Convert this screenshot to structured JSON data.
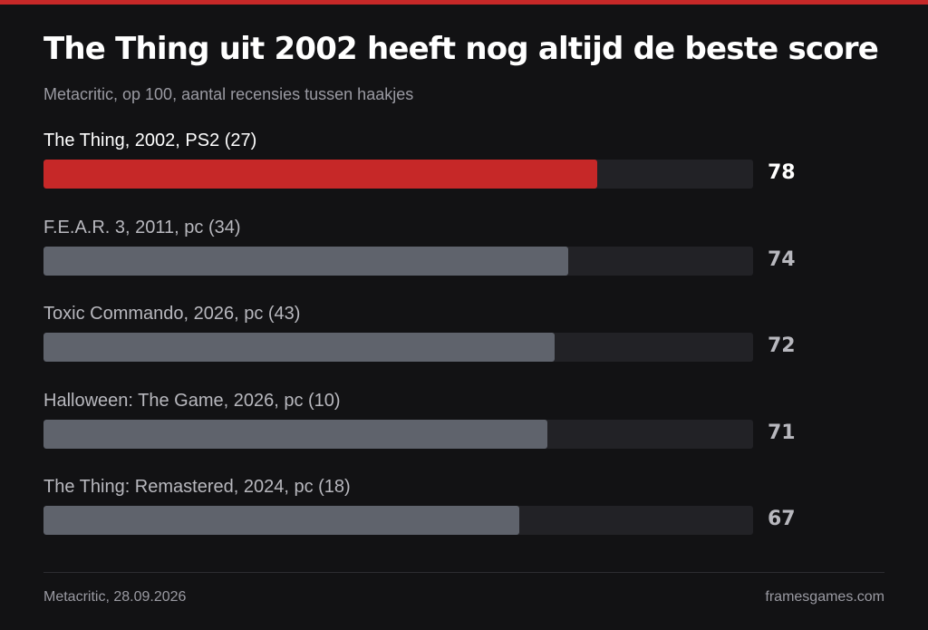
{
  "colors": {
    "highlight": "#c62828",
    "bar": "#5f636c",
    "track": "#222226",
    "background": "#121214"
  },
  "chart_data": {
    "type": "bar",
    "orientation": "horizontal",
    "title": "The Thing uit 2002 heeft nog altijd de beste score",
    "subtitle": "Metacritic, op 100, aantal recensies tussen haakjes",
    "categories": [
      "The Thing, 2002, PS2 (27)",
      "F.E.A.R. 3, 2011, pc (34)",
      "Toxic Commando, 2026, pc (43)",
      "Halloween: The Game, 2026, pc (10)",
      "The Thing: Remastered, 2024, pc (18)"
    ],
    "values": [
      78,
      74,
      72,
      71,
      67
    ],
    "highlighted_index": 0,
    "xlim": [
      0,
      100
    ],
    "grid": false,
    "legend": "none"
  },
  "footer": {
    "source": "Metacritic, 28.09.2026",
    "brand": "framesgames.com"
  }
}
